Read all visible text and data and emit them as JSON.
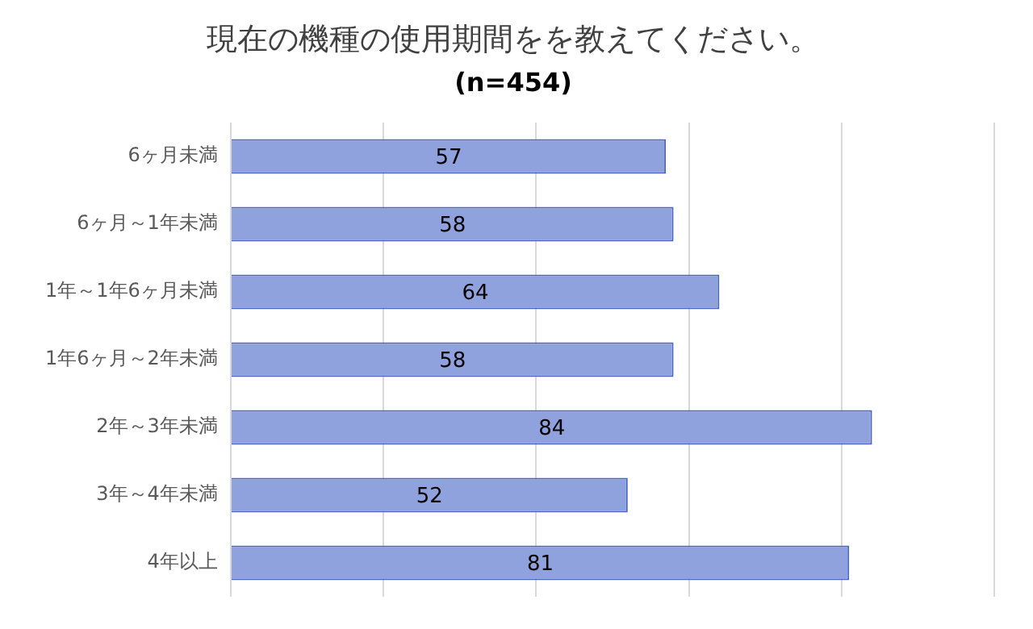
{
  "chart_data": {
    "type": "bar",
    "orientation": "horizontal",
    "title": "現在の機種の使用期間をを教えてください。",
    "subtitle": "(n=454)",
    "categories": [
      "6ヶ月未満",
      "6ヶ月～1年未満",
      "1年～1年6ヶ月未満",
      "1年6ヶ月～2年未満",
      "2年～3年未満",
      "3年～4年未満",
      "4年以上"
    ],
    "values": [
      57,
      58,
      64,
      58,
      84,
      52,
      81
    ],
    "color": "#8fa2de",
    "xlim": [
      0,
      100
    ],
    "xticks": [
      {
        "value": 0,
        "label": null
      },
      {
        "value": 20,
        "label": null
      },
      {
        "value": 40,
        "label": null
      },
      {
        "value": 60,
        "label": null
      },
      {
        "value": 80,
        "label": null
      },
      {
        "value": 100,
        "label": null
      }
    ],
    "grid": "x",
    "tick_labels": "y",
    "data_labels": true,
    "legend": false
  }
}
